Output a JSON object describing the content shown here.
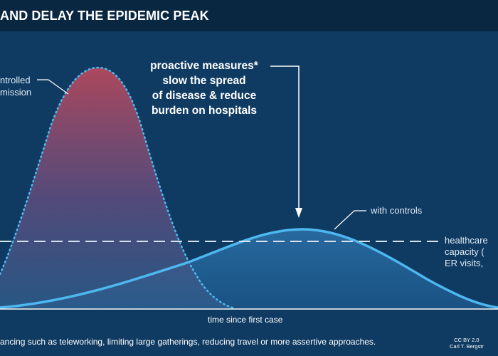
{
  "title": "AND DELAY THE EPIDEMIC PEAK",
  "annotations": {
    "uncontrolled_line1": "ntrolled",
    "uncontrolled_line2": "mission",
    "proactive_line1": "proactive measures*",
    "proactive_line2": "slow the spread",
    "proactive_line3": "of disease & reduce",
    "proactive_line4": "burden on hospitals",
    "with_controls": "with controls",
    "capacity_line1": "healthcare",
    "capacity_line2": "capacity (",
    "capacity_line3": "ER visits,",
    "x_axis": "time since first case"
  },
  "footnote": "ancing such as teleworking, limiting large gatherings, reducing travel or more assertive approaches.",
  "credit_line1": "CC BY 2.0",
  "credit_line2": "Carl T. Bergstr",
  "colors": {
    "background": "#0f3b62",
    "header": "#0a2742",
    "curve": "#4db8f0",
    "uncontrolled_fill_top": "#b0485c",
    "capacity_line": "#d8e2ec"
  }
}
